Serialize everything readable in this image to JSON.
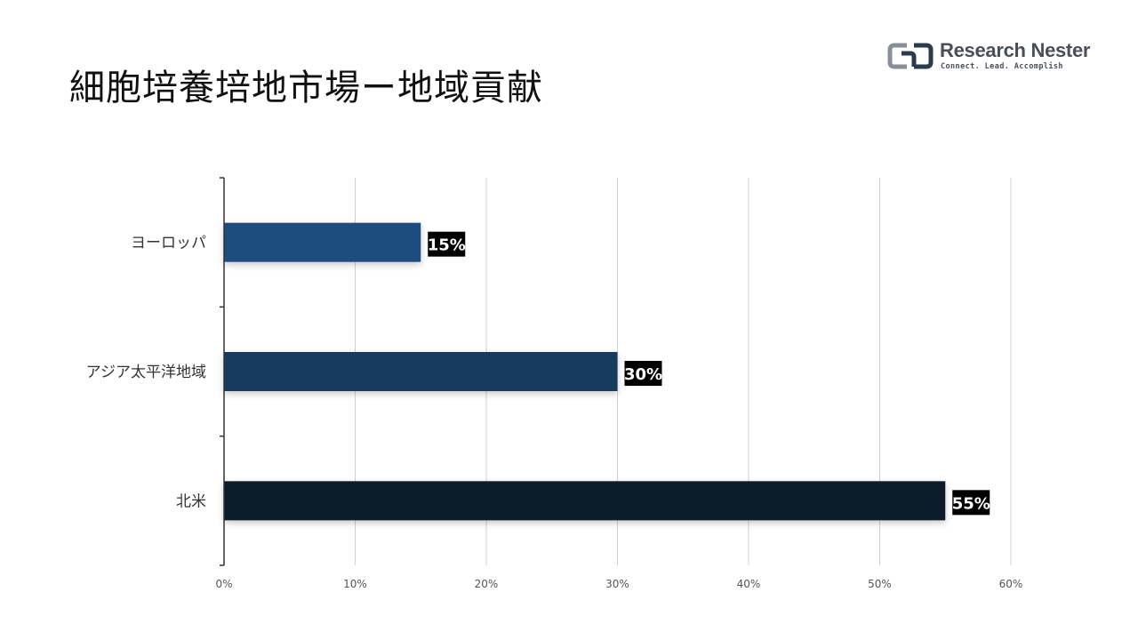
{
  "header": {
    "title": "細胞培養培地市場ー地域貢献"
  },
  "brand": {
    "name": "Research Nester",
    "tagline": "Connect. Lead. Accomplish",
    "icon": "research-nester-logo-icon"
  },
  "colors": {
    "europe_bar": "#1f4e7e",
    "apac_bar": "#183a5e",
    "north_america_bar": "#0e1c2c",
    "data_label_bg": "#000000",
    "gridline": "#d0d0d0",
    "axis": "#333333",
    "brand_gray": "#4a4f57"
  },
  "chart_data": {
    "type": "bar",
    "orientation": "horizontal",
    "categories": [
      "ヨーロッパ",
      "アジア太平洋地域",
      "北米"
    ],
    "values": [
      15,
      30,
      55
    ],
    "data_labels": [
      "15%",
      "30%",
      "55%"
    ],
    "xticks": [
      "0%",
      "10%",
      "20%",
      "30%",
      "40%",
      "50%",
      "60%"
    ],
    "xlim": [
      0,
      60
    ],
    "grid": true,
    "legend": "none"
  }
}
